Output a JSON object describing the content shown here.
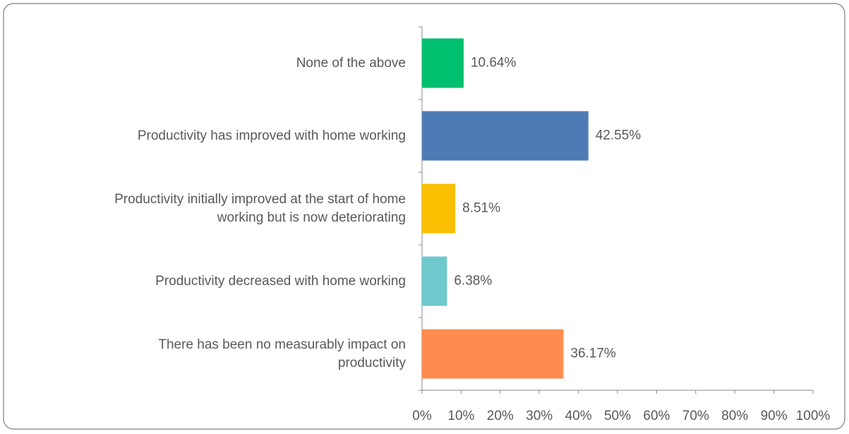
{
  "chart_data": {
    "type": "bar",
    "orientation": "horizontal",
    "categories": [
      "None of the above",
      "Productivity has improved with home working",
      "Productivity initially improved at the start of home\nworking but is now deteriorating",
      "Productivity decreased  with home working",
      "There has been no measurably impact on\nproductivity"
    ],
    "values": [
      10.64,
      42.55,
      8.51,
      6.38,
      36.17
    ],
    "value_labels": [
      "10.64%",
      "42.55%",
      "8.51%",
      "6.38%",
      "36.17%"
    ],
    "colors": [
      "#00bf6f",
      "#4d7ab5",
      "#f9bf00",
      "#6ec9cc",
      "#ff8c4f"
    ],
    "xlim": [
      0,
      100
    ],
    "xticks": [
      {
        "value": 0,
        "label": "0%"
      },
      {
        "value": 10,
        "label": "10%"
      },
      {
        "value": 20,
        "label": "20%"
      },
      {
        "value": 30,
        "label": "30%"
      },
      {
        "value": 40,
        "label": "40%"
      },
      {
        "value": 50,
        "label": "50%"
      },
      {
        "value": 60,
        "label": "60%"
      },
      {
        "value": 70,
        "label": "70%"
      },
      {
        "value": 80,
        "label": "80%"
      },
      {
        "value": 90,
        "label": "90%"
      },
      {
        "value": 100,
        "label": "100%"
      }
    ],
    "grid": false
  }
}
